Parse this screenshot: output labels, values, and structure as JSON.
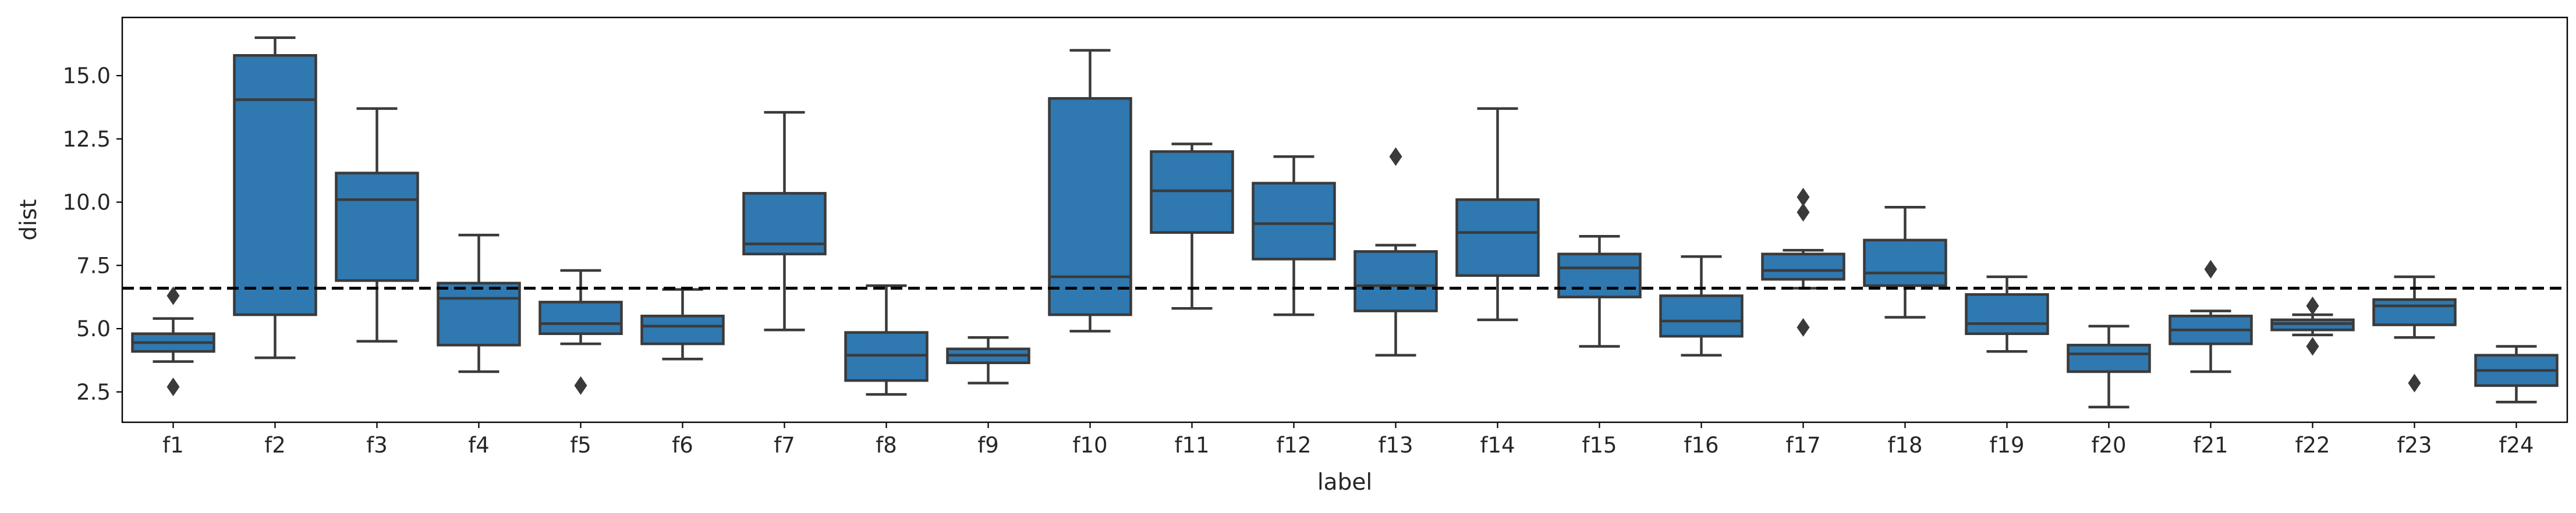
{
  "chart_data": {
    "type": "box",
    "title": "",
    "xlabel": "label",
    "ylabel": "dist",
    "ylim": [
      1.3,
      17.3
    ],
    "yticks": [
      2.5,
      5.0,
      7.5,
      10.0,
      12.5,
      15.0
    ],
    "ytick_labels": [
      "2.5",
      "5.0",
      "7.5",
      "10.0",
      "12.5",
      "15.0"
    ],
    "reference_line": {
      "y": 6.6,
      "style": "dashed",
      "color": "#000000"
    },
    "box_color": "#2f78b0",
    "line_color": "#3a3a3a",
    "categories": [
      "f1",
      "f2",
      "f3",
      "f4",
      "f5",
      "f6",
      "f7",
      "f8",
      "f9",
      "f10",
      "f11",
      "f12",
      "f13",
      "f14",
      "f15",
      "f16",
      "f17",
      "f18",
      "f19",
      "f20",
      "f21",
      "f22",
      "f23",
      "f24"
    ],
    "boxes": [
      {
        "label": "f1",
        "whisker_low": 3.7,
        "q1": 4.1,
        "median": 4.45,
        "q3": 4.8,
        "whisker_high": 5.4,
        "outliers": [
          6.3,
          2.7
        ]
      },
      {
        "label": "f2",
        "whisker_low": 3.85,
        "q1": 5.55,
        "median": 14.05,
        "q3": 15.8,
        "whisker_high": 16.5,
        "outliers": []
      },
      {
        "label": "f3",
        "whisker_low": 4.5,
        "q1": 6.9,
        "median": 10.1,
        "q3": 11.15,
        "whisker_high": 13.7,
        "outliers": []
      },
      {
        "label": "f4",
        "whisker_low": 3.3,
        "q1": 4.35,
        "median": 6.2,
        "q3": 6.8,
        "whisker_high": 8.7,
        "outliers": []
      },
      {
        "label": "f5",
        "whisker_low": 4.4,
        "q1": 4.8,
        "median": 5.2,
        "q3": 6.05,
        "whisker_high": 7.3,
        "outliers": [
          2.75
        ]
      },
      {
        "label": "f6",
        "whisker_low": 3.8,
        "q1": 4.4,
        "median": 5.1,
        "q3": 5.5,
        "whisker_high": 6.55,
        "outliers": []
      },
      {
        "label": "f7",
        "whisker_low": 4.95,
        "q1": 7.95,
        "median": 8.35,
        "q3": 10.35,
        "whisker_high": 13.55,
        "outliers": []
      },
      {
        "label": "f8",
        "whisker_low": 2.4,
        "q1": 2.95,
        "median": 3.95,
        "q3": 4.85,
        "whisker_high": 6.7,
        "outliers": []
      },
      {
        "label": "f9",
        "whisker_low": 2.85,
        "q1": 3.65,
        "median": 3.95,
        "q3": 4.2,
        "whisker_high": 4.65,
        "outliers": []
      },
      {
        "label": "f10",
        "whisker_low": 4.9,
        "q1": 5.55,
        "median": 7.05,
        "q3": 14.1,
        "whisker_high": 16.0,
        "outliers": []
      },
      {
        "label": "f11",
        "whisker_low": 5.8,
        "q1": 8.8,
        "median": 10.45,
        "q3": 12.0,
        "whisker_high": 12.3,
        "outliers": []
      },
      {
        "label": "f12",
        "whisker_low": 5.55,
        "q1": 7.75,
        "median": 9.15,
        "q3": 10.75,
        "whisker_high": 11.8,
        "outliers": []
      },
      {
        "label": "f13",
        "whisker_low": 3.95,
        "q1": 5.7,
        "median": 6.7,
        "q3": 8.05,
        "whisker_high": 8.3,
        "outliers": [
          11.8
        ]
      },
      {
        "label": "f14",
        "whisker_low": 5.35,
        "q1": 7.1,
        "median": 8.8,
        "q3": 10.1,
        "whisker_high": 13.7,
        "outliers": []
      },
      {
        "label": "f15",
        "whisker_low": 4.3,
        "q1": 6.25,
        "median": 7.4,
        "q3": 7.95,
        "whisker_high": 8.65,
        "outliers": []
      },
      {
        "label": "f16",
        "whisker_low": 3.95,
        "q1": 4.7,
        "median": 5.3,
        "q3": 6.3,
        "whisker_high": 7.85,
        "outliers": []
      },
      {
        "label": "f17",
        "whisker_low": 6.6,
        "q1": 6.95,
        "median": 7.3,
        "q3": 7.95,
        "whisker_high": 8.1,
        "outliers": [
          10.2,
          9.6,
          5.05
        ]
      },
      {
        "label": "f18",
        "whisker_low": 5.45,
        "q1": 6.7,
        "median": 7.2,
        "q3": 8.5,
        "whisker_high": 9.8,
        "outliers": []
      },
      {
        "label": "f19",
        "whisker_low": 4.1,
        "q1": 4.8,
        "median": 5.2,
        "q3": 6.35,
        "whisker_high": 7.05,
        "outliers": []
      },
      {
        "label": "f20",
        "whisker_low": 1.9,
        "q1": 3.3,
        "median": 4.0,
        "q3": 4.35,
        "whisker_high": 5.1,
        "outliers": []
      },
      {
        "label": "f21",
        "whisker_low": 3.3,
        "q1": 4.4,
        "median": 4.95,
        "q3": 5.5,
        "whisker_high": 5.7,
        "outliers": [
          7.35
        ]
      },
      {
        "label": "f22",
        "whisker_low": 4.75,
        "q1": 4.95,
        "median": 5.2,
        "q3": 5.35,
        "whisker_high": 5.55,
        "outliers": [
          5.9,
          4.3
        ]
      },
      {
        "label": "f23",
        "whisker_low": 4.65,
        "q1": 5.15,
        "median": 5.9,
        "q3": 6.15,
        "whisker_high": 7.05,
        "outliers": [
          2.85
        ]
      },
      {
        "label": "f24",
        "whisker_low": 2.1,
        "q1": 2.75,
        "median": 3.35,
        "q3": 3.95,
        "whisker_high": 4.3,
        "outliers": []
      }
    ]
  }
}
